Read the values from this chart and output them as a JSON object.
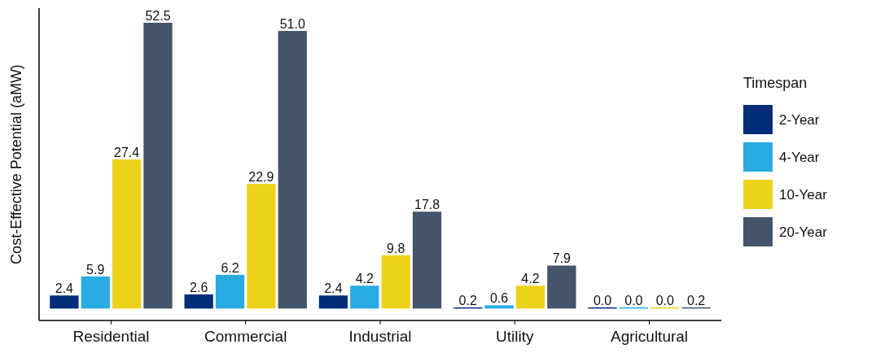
{
  "chart_data": {
    "type": "bar",
    "ylabel": "Cost-Effective Potential (aMW)",
    "legend_title": "Timespan",
    "categories": [
      "Residential",
      "Commercial",
      "Industrial",
      "Utility",
      "Agricultural"
    ],
    "series": [
      {
        "name": "2-Year",
        "color": "#002d7a",
        "values": [
          2.4,
          2.6,
          2.4,
          0.2,
          0.0
        ],
        "value_labels": [
          "2.4",
          "2.6",
          "2.4",
          "0.2",
          "0.0"
        ]
      },
      {
        "name": "4-Year",
        "color": "#29abe2",
        "values": [
          5.9,
          6.2,
          4.2,
          0.6,
          0.0
        ],
        "value_labels": [
          "5.9",
          "6.2",
          "4.2",
          "0.6",
          "0.0"
        ]
      },
      {
        "name": "10-Year",
        "color": "#edd21c",
        "values": [
          27.4,
          22.9,
          9.8,
          4.2,
          0.0
        ],
        "value_labels": [
          "27.4",
          "22.9",
          "9.8",
          "4.2",
          "0.0"
        ]
      },
      {
        "name": "20-Year",
        "color": "#44546a",
        "values": [
          52.5,
          51.0,
          17.8,
          7.9,
          0.2
        ],
        "value_labels": [
          "52.5",
          "51.0",
          "17.8",
          "7.9",
          "0.2"
        ]
      }
    ],
    "legend": "right"
  }
}
